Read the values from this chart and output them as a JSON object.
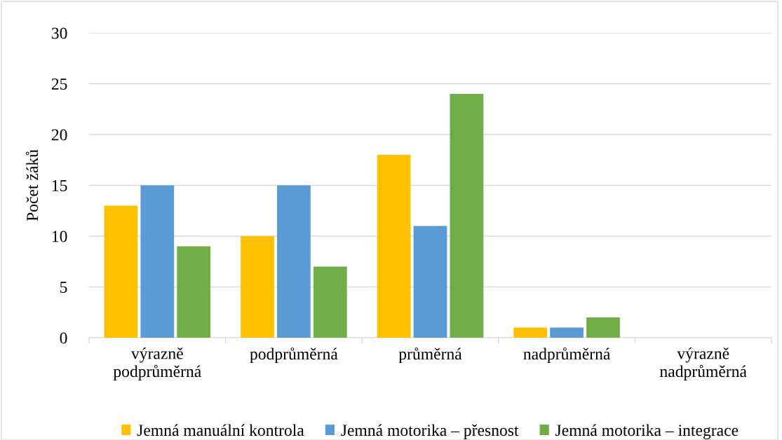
{
  "chart_data": {
    "type": "bar",
    "ylabel": "Počet žáků",
    "categories": [
      "výrazně\npodprůměrná",
      "podprůměrná",
      "průměrná",
      "nadprůměrná",
      "výrazně\nnadprůměrná"
    ],
    "series": [
      {
        "name": "Jemná manuální kontrola",
        "color": "#ffc000",
        "values": [
          13,
          10,
          18,
          1,
          0
        ]
      },
      {
        "name": "Jemná motorika – přesnost",
        "color": "#5b9bd5",
        "values": [
          15,
          15,
          11,
          1,
          0
        ]
      },
      {
        "name": "Jemná motorika – integrace",
        "color": "#70ad47",
        "values": [
          9,
          7,
          24,
          2,
          0
        ]
      }
    ],
    "ylim": [
      0,
      30
    ],
    "yticks": [
      0,
      5,
      10,
      15,
      20,
      25,
      30
    ],
    "grid": "y",
    "legend": "bottom"
  }
}
